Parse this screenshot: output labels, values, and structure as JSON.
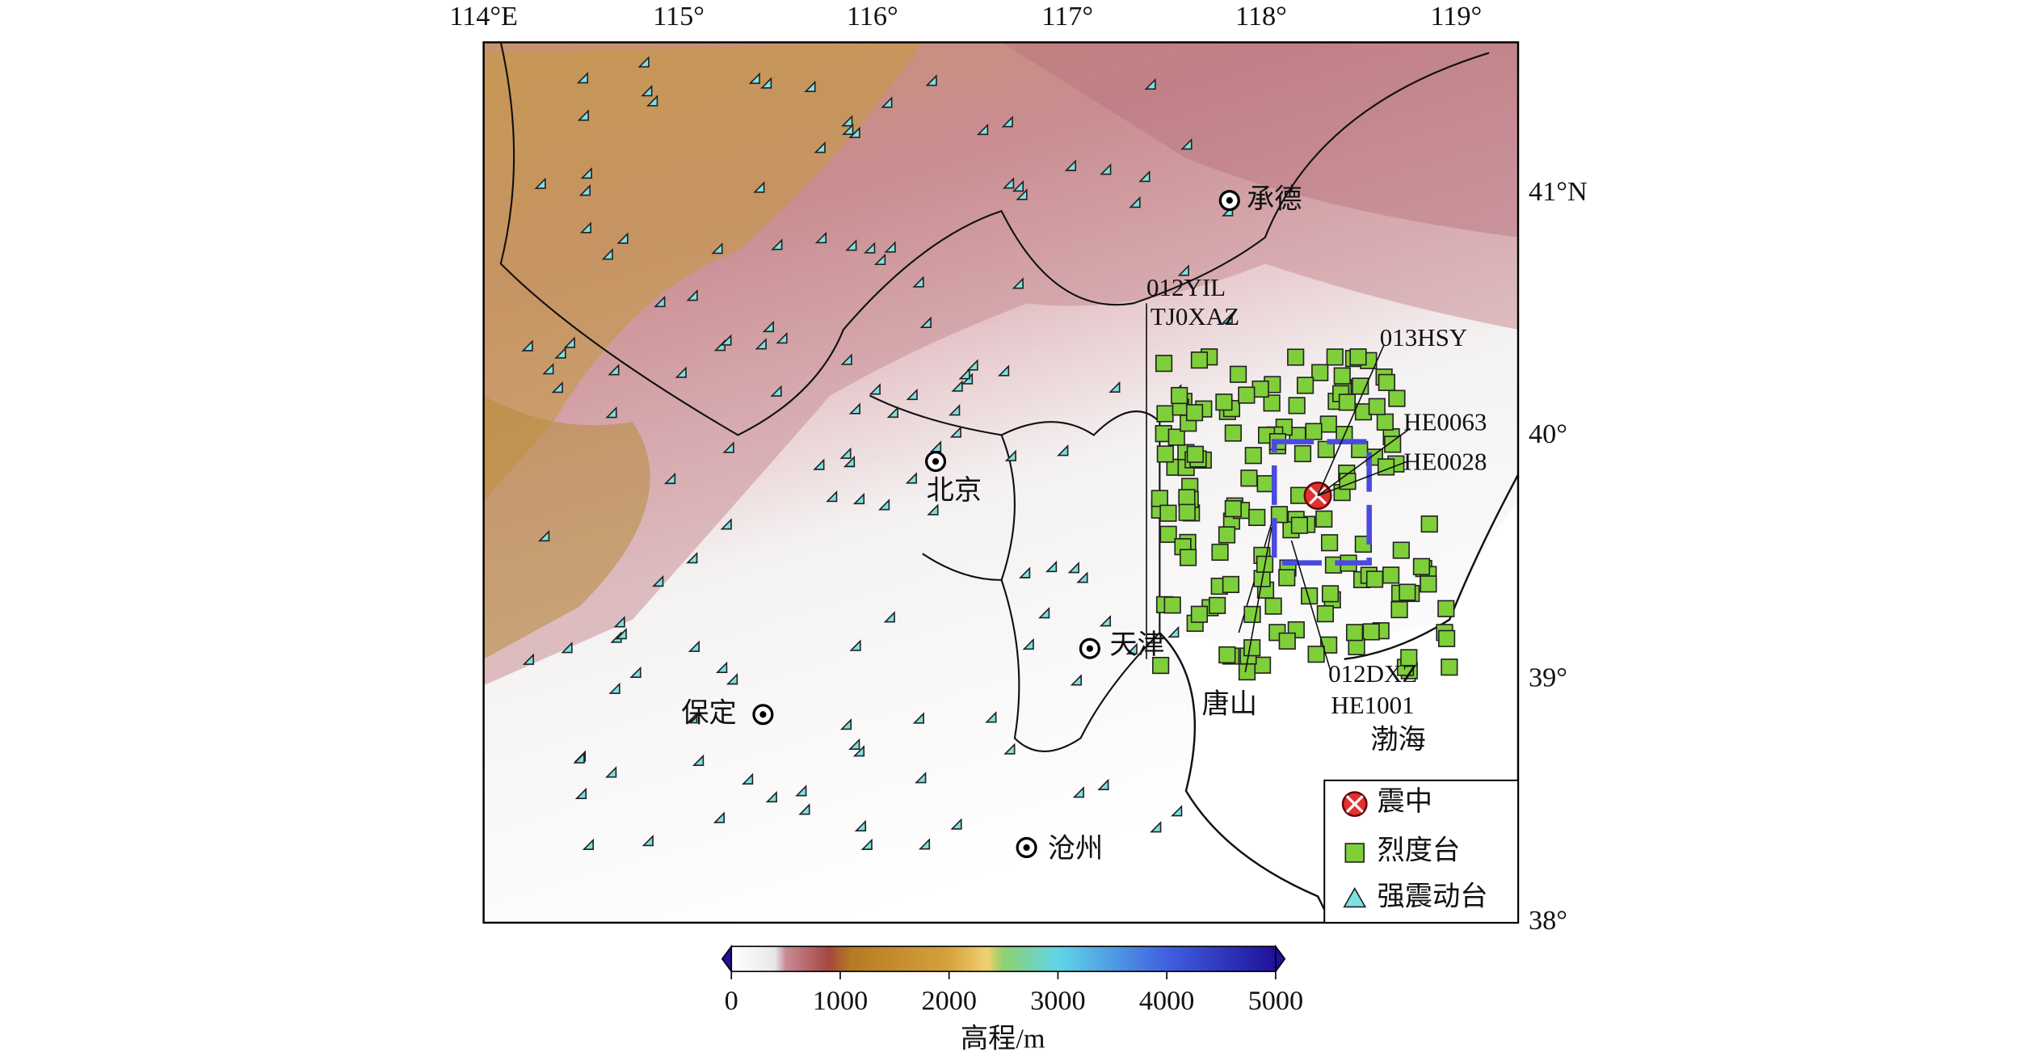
{
  "map": {
    "lon_labels": [
      "114°E",
      "115°",
      "116°",
      "117°",
      "118°",
      "119°"
    ],
    "lat_labels": [
      "41°N",
      "40°",
      "39°",
      "38°"
    ],
    "cities": [
      "承德",
      "北京",
      "天津",
      "保定",
      "沧州",
      "唐山",
      "渤海"
    ],
    "station_labels": [
      "012YIL",
      "TJ0XAZ",
      "013HSY",
      "HE0063",
      "HE0028",
      "012DXZ",
      "HE1001"
    ],
    "legend": [
      "震中",
      "烈度台",
      "强震动台"
    ],
    "colorbar": {
      "label": "高程/m",
      "lim": [
        0,
        5000
      ],
      "ticks": [
        0,
        1000,
        2000,
        3000,
        4000,
        5000
      ]
    }
  }
}
